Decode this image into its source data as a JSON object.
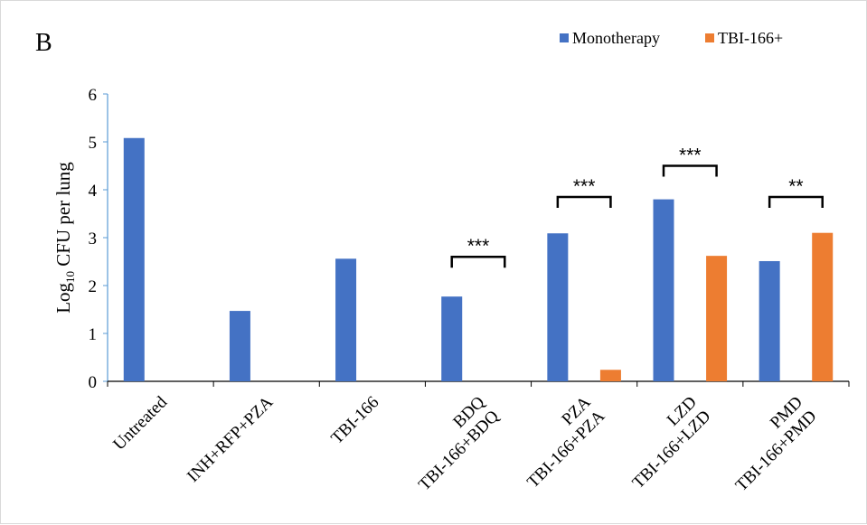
{
  "panel_label": "B",
  "chart_data": {
    "type": "bar",
    "ylabel_main": "Log",
    "ylabel_sub": "10",
    "ylabel_rest": " CFU per lung",
    "ylim": [
      0,
      6
    ],
    "yticks": [
      "0",
      "1",
      "2",
      "3",
      "4",
      "5",
      "6"
    ],
    "grid": false,
    "legend_position": "top-right",
    "categories": [
      {
        "lines": [
          "Untreated"
        ]
      },
      {
        "lines": [
          "INH+RFP+PZA"
        ]
      },
      {
        "lines": [
          "TBI-166"
        ]
      },
      {
        "lines": [
          "BDQ",
          "TBI-166+BDQ"
        ]
      },
      {
        "lines": [
          "PZA",
          "TBI-166+PZA"
        ]
      },
      {
        "lines": [
          "LZD",
          "TBI-166+LZD"
        ]
      },
      {
        "lines": [
          "PMD",
          "TBI-166+PMD"
        ]
      }
    ],
    "series": [
      {
        "name": "Monotherapy",
        "color": "#4472c4",
        "values": [
          5.08,
          1.47,
          2.56,
          1.77,
          3.09,
          3.8,
          2.51
        ]
      },
      {
        "name": "TBI-166+",
        "color": "#ed7d31",
        "values": [
          null,
          null,
          null,
          0,
          0.24,
          2.62,
          3.1
        ]
      }
    ],
    "significance": [
      {
        "category_index": 3,
        "label": "***",
        "y": 2.6
      },
      {
        "category_index": 4,
        "label": "***",
        "y": 3.85
      },
      {
        "category_index": 5,
        "label": "***",
        "y": 4.5
      },
      {
        "category_index": 6,
        "label": "**",
        "y": 3.85
      }
    ]
  }
}
